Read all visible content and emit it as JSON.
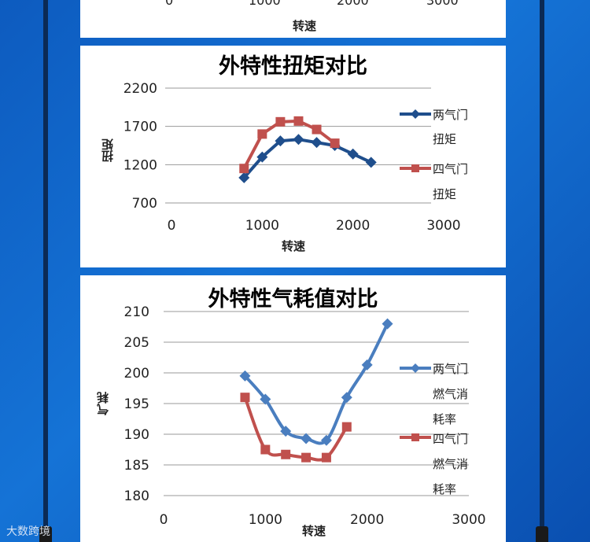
{
  "colors": {
    "series1": "#1f4e8c",
    "series2": "#c0504d",
    "series1_fuel": "#4a7ebf",
    "series2_fuel": "#c0504d"
  },
  "top_chart": {
    "x_tick_labels": [
      "0",
      "1000",
      "2000",
      "3000"
    ],
    "xlabel": "转速"
  },
  "chart_data": [
    {
      "type": "line",
      "title": "外特性扭矩对比",
      "xlabel": "转速",
      "ylabel": "扭矩",
      "xlim": [
        0,
        3000
      ],
      "ylim": [
        700,
        2200
      ],
      "x_ticks": [
        0,
        1000,
        2000,
        3000
      ],
      "y_ticks": [
        700,
        1200,
        1700,
        2200
      ],
      "grid": true,
      "legend_position": "right",
      "series": [
        {
          "name": "两气门扭矩",
          "legend_lines": [
            "两气门",
            "扭矩"
          ],
          "marker": "diamond",
          "x": [
            800,
            1000,
            1200,
            1400,
            1600,
            1800,
            2000,
            2200
          ],
          "y": [
            1030,
            1300,
            1510,
            1530,
            1490,
            1450,
            1340,
            1230
          ]
        },
        {
          "name": "四气门扭矩",
          "legend_lines": [
            "四气门",
            "扭矩"
          ],
          "marker": "square",
          "x": [
            800,
            1000,
            1200,
            1400,
            1600,
            1800
          ],
          "y": [
            1150,
            1600,
            1760,
            1770,
            1660,
            1480
          ]
        }
      ]
    },
    {
      "type": "line",
      "title": "外特性气耗值对比",
      "xlabel": "转速",
      "ylabel": "气耗",
      "xlim": [
        0,
        3000
      ],
      "ylim": [
        180,
        210
      ],
      "x_ticks": [
        0,
        1000,
        2000,
        3000
      ],
      "y_ticks": [
        180,
        185,
        190,
        195,
        200,
        205,
        210
      ],
      "grid": true,
      "legend_position": "right",
      "series": [
        {
          "name": "两气门燃气消耗率",
          "legend_lines": [
            "两气门",
            "燃气消",
            "耗率"
          ],
          "marker": "diamond",
          "x": [
            800,
            1000,
            1200,
            1400,
            1600,
            1800,
            2000,
            2200
          ],
          "y": [
            199.5,
            195.7,
            190.5,
            189.3,
            189.0,
            196.0,
            201.3,
            208.0
          ]
        },
        {
          "name": "四气门燃气消耗率",
          "legend_lines": [
            "四气门",
            "燃气消",
            "耗率"
          ],
          "marker": "square",
          "x": [
            800,
            1000,
            1200,
            1400,
            1600,
            1800
          ],
          "y": [
            196.0,
            187.5,
            186.7,
            186.2,
            186.2,
            191.2
          ]
        }
      ]
    }
  ],
  "watermark": "大数跨境"
}
